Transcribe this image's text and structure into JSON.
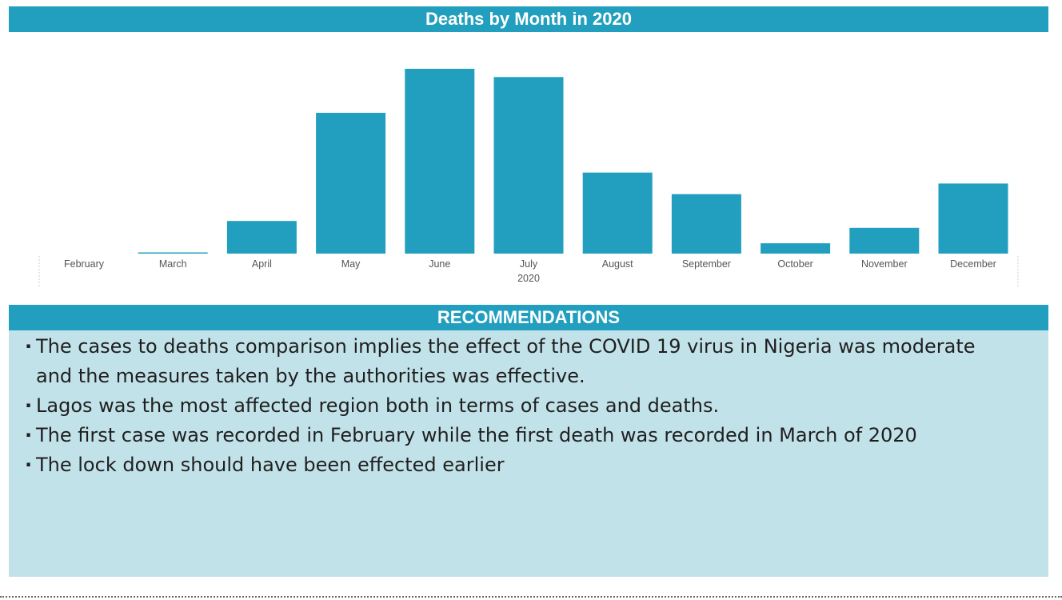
{
  "chart_title": "Deaths by Month in 2020",
  "recommendations_title": "RECOMMENDATIONS",
  "recommendations": [
    "The cases to deaths comparison implies the effect of the COVID 19 virus in Nigeria was moderate and the measures taken by the authorities was effective.",
    "Lagos was the most affected region both in terms of cases and deaths.",
    "The first case was recorded in February while the first death was recorded in March of 2020",
    "The lock down should have been effected earlier"
  ],
  "colors": {
    "accent": "#229fbf",
    "panel": "#c2e2e9"
  },
  "chart_data": {
    "type": "bar",
    "title": "Deaths by Month in 2020",
    "categories": [
      "February",
      "March",
      "April",
      "May",
      "June",
      "July",
      "August",
      "September",
      "October",
      "November",
      "December"
    ],
    "year_label": "2020",
    "values": [
      0,
      2,
      95,
      410,
      538,
      514,
      236,
      173,
      30,
      75,
      204
    ],
    "ylim": [
      0,
      538
    ],
    "grid": false,
    "legend": "none",
    "y_axis_shown": false
  }
}
